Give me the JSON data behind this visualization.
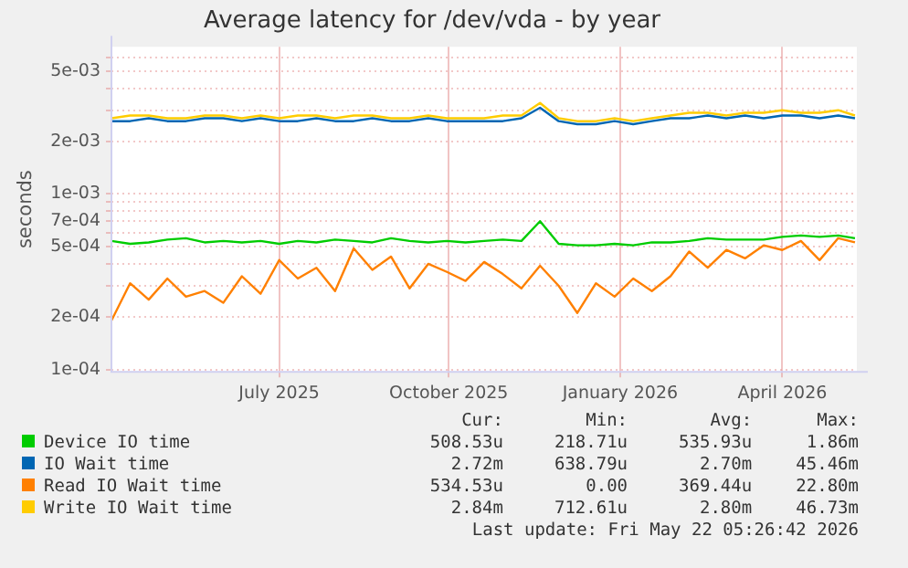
{
  "chart_data": {
    "type": "line",
    "title": "Average latency for /dev/vda - by year",
    "ylabel": "seconds",
    "log": "y",
    "grid": true,
    "legend": "bottom",
    "marker": "none",
    "line_style": "solid",
    "xlim": [
      "2025-04-17",
      "2026-05-22"
    ],
    "xticks": [
      {
        "value": "2025-07-16",
        "label": "July 2025"
      },
      {
        "value": "2025-10-15",
        "label": "October 2025"
      },
      {
        "value": "2026-01-15",
        "label": "January 2026"
      },
      {
        "value": "2026-04-12",
        "label": "April 2026"
      }
    ],
    "ylim": [
      9.7e-05,
      0.0069
    ],
    "yticks": [
      {
        "value": 0.0001,
        "label": "1e-04"
      },
      {
        "value": 0.0002,
        "label": "2e-04"
      },
      {
        "value": 0.0003,
        "label": null
      },
      {
        "value": 0.0004,
        "label": null
      },
      {
        "value": 0.0005,
        "label": "5e-04"
      },
      {
        "value": 0.0006,
        "label": null
      },
      {
        "value": 0.0007,
        "label": "7e-04"
      },
      {
        "value": 0.0008,
        "label": null
      },
      {
        "value": 0.0009,
        "label": null
      },
      {
        "value": 0.001,
        "label": "1e-03"
      },
      {
        "value": 0.002,
        "label": "2e-03"
      },
      {
        "value": 0.003,
        "label": null
      },
      {
        "value": 0.004,
        "label": null
      },
      {
        "value": 0.005,
        "label": "5e-03"
      },
      {
        "value": 0.006,
        "label": null
      }
    ],
    "x": [
      "2025-04-17",
      "2025-04-27",
      "2025-05-07",
      "2025-05-17",
      "2025-05-27",
      "2025-06-06",
      "2025-06-16",
      "2025-06-26",
      "2025-07-06",
      "2025-07-16",
      "2025-07-26",
      "2025-08-05",
      "2025-08-15",
      "2025-08-25",
      "2025-09-04",
      "2025-09-14",
      "2025-09-24",
      "2025-10-04",
      "2025-10-14",
      "2025-10-24",
      "2025-11-03",
      "2025-11-13",
      "2025-11-23",
      "2025-12-03",
      "2025-12-13",
      "2025-12-23",
      "2026-01-02",
      "2026-01-12",
      "2026-01-22",
      "2026-02-01",
      "2026-02-11",
      "2026-02-21",
      "2026-03-03",
      "2026-03-13",
      "2026-03-23",
      "2026-04-02",
      "2026-04-12",
      "2026-04-22",
      "2026-05-02",
      "2026-05-12",
      "2026-05-21"
    ],
    "series": [
      {
        "name": "Device IO time",
        "color": "#00cc00",
        "values": [
          0.00054,
          0.00052,
          0.00053,
          0.00055,
          0.00056,
          0.00053,
          0.00054,
          0.00053,
          0.00054,
          0.00052,
          0.00054,
          0.00053,
          0.00055,
          0.00054,
          0.00053,
          0.00056,
          0.00054,
          0.00053,
          0.00054,
          0.00053,
          0.00054,
          0.00055,
          0.00054,
          0.0007,
          0.00052,
          0.00051,
          0.00051,
          0.00052,
          0.00051,
          0.00053,
          0.00053,
          0.00054,
          0.00056,
          0.00055,
          0.00055,
          0.00055,
          0.00057,
          0.00058,
          0.00057,
          0.00058,
          0.00056
        ]
      },
      {
        "name": "IO Wait time",
        "color": "#0066b3",
        "values": [
          0.0026,
          0.0026,
          0.0027,
          0.0026,
          0.0026,
          0.0027,
          0.0027,
          0.0026,
          0.0027,
          0.0026,
          0.0026,
          0.0027,
          0.0026,
          0.0026,
          0.0027,
          0.0026,
          0.0026,
          0.0027,
          0.0026,
          0.0026,
          0.0026,
          0.0026,
          0.0027,
          0.0031,
          0.0026,
          0.0025,
          0.0025,
          0.0026,
          0.0025,
          0.0026,
          0.0027,
          0.0027,
          0.0028,
          0.0027,
          0.0028,
          0.0027,
          0.0028,
          0.0028,
          0.0027,
          0.0028,
          0.0027
        ]
      },
      {
        "name": "Read IO Wait time",
        "color": "#ff8000",
        "values": [
          0.00019,
          0.00031,
          0.00025,
          0.00033,
          0.00026,
          0.00028,
          0.00024,
          0.00034,
          0.00027,
          0.00042,
          0.00033,
          0.00038,
          0.00028,
          0.00049,
          0.00037,
          0.00044,
          0.00029,
          0.0004,
          0.00036,
          0.00032,
          0.00041,
          0.00035,
          0.00029,
          0.00039,
          0.0003,
          0.00021,
          0.00031,
          0.00026,
          0.00033,
          0.00028,
          0.00034,
          0.00047,
          0.00038,
          0.00048,
          0.00043,
          0.00051,
          0.00048,
          0.00054,
          0.00042,
          0.00056,
          0.00053
        ]
      },
      {
        "name": "Write IO Wait time",
        "color": "#ffcc00",
        "values": [
          0.0027,
          0.0028,
          0.0028,
          0.0027,
          0.0027,
          0.0028,
          0.0028,
          0.0027,
          0.0028,
          0.0027,
          0.0028,
          0.0028,
          0.0027,
          0.0028,
          0.0028,
          0.0027,
          0.0027,
          0.0028,
          0.0027,
          0.0027,
          0.0027,
          0.0028,
          0.0028,
          0.0033,
          0.0027,
          0.0026,
          0.0026,
          0.0027,
          0.0026,
          0.0027,
          0.0028,
          0.0029,
          0.0029,
          0.0028,
          0.0029,
          0.0029,
          0.003,
          0.0029,
          0.0029,
          0.003,
          0.0028
        ]
      }
    ],
    "annotations": [
      "Cur:",
      "Min:",
      "Avg:",
      "Max:",
      "508.53u",
      "218.71u",
      "535.93u",
      "1.86m",
      "2.72m",
      "638.79u",
      "2.70m",
      "45.46m",
      "534.53u",
      "0.00",
      "369.44u",
      "22.80m",
      "2.84m",
      "712.61u",
      "2.80m",
      "46.73m",
      "Last update: Fri May 22 05:26:42 2026"
    ]
  }
}
